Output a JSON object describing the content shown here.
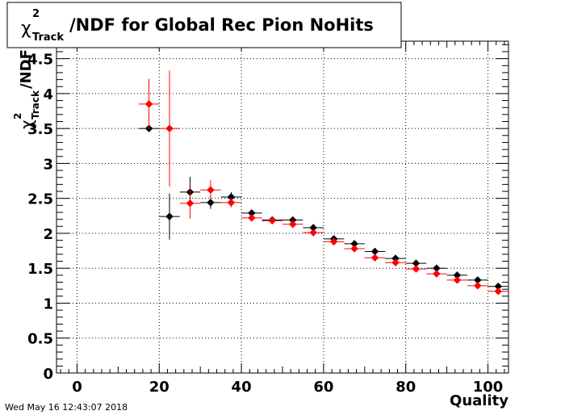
{
  "chart_data": {
    "type": "scatter",
    "title_main": "/NDF for Global Rec Pion NoHits",
    "title_chi": "χ",
    "title_sup": "2",
    "title_sub": "Track",
    "ylabel_chi": "χ",
    "ylabel_sup": "2",
    "ylabel_sub": "Track",
    "ylabel_rest": "/NDF",
    "xlabel": "Quality",
    "xlim": [
      -5,
      105
    ],
    "ylim": [
      0,
      4.75
    ],
    "grid": true,
    "x_ticks": [
      "0",
      "20",
      "40",
      "60",
      "80",
      "100"
    ],
    "y_ticks": [
      "0",
      "0.5",
      "1",
      "1.5",
      "2",
      "2.5",
      "3",
      "3.5",
      "4",
      "4.5"
    ],
    "series": [
      {
        "color": "#000000",
        "x": [
          17.5,
          22.5,
          27.5,
          32.5,
          37.5,
          42.5,
          47.5,
          52.5,
          57.5,
          62.5,
          67.5,
          72.5,
          77.5,
          82.5,
          87.5,
          92.5,
          97.5,
          102.5
        ],
        "y": [
          3.5,
          2.24,
          2.59,
          2.44,
          2.52,
          2.29,
          2.19,
          2.19,
          2.08,
          1.92,
          1.85,
          1.74,
          1.64,
          1.57,
          1.5,
          1.4,
          1.33,
          1.24
        ],
        "err": [
          0.0,
          0.33,
          0.22,
          0.09,
          0.07,
          0.03,
          0.02,
          0.02,
          0.02,
          0.02,
          0.02,
          0.02,
          0.02,
          0.02,
          0.02,
          0.02,
          0.02,
          0.02
        ]
      },
      {
        "color": "#ff0000",
        "x": [
          17.5,
          22.5,
          27.5,
          32.5,
          37.5,
          42.5,
          47.5,
          52.5,
          57.5,
          62.5,
          67.5,
          72.5,
          77.5,
          82.5,
          87.5,
          92.5,
          97.5,
          102.5
        ],
        "y": [
          3.85,
          3.5,
          2.43,
          2.62,
          2.44,
          2.22,
          2.18,
          2.13,
          2.01,
          1.88,
          1.78,
          1.65,
          1.58,
          1.49,
          1.42,
          1.33,
          1.25,
          1.17
        ],
        "err": [
          0.36,
          0.83,
          0.22,
          0.14,
          0.07,
          0.03,
          0.02,
          0.02,
          0.02,
          0.02,
          0.02,
          0.02,
          0.02,
          0.02,
          0.02,
          0.02,
          0.02,
          0.02
        ]
      }
    ]
  },
  "footer": {
    "timestamp": "Wed May 16 12:43:07 2018"
  }
}
